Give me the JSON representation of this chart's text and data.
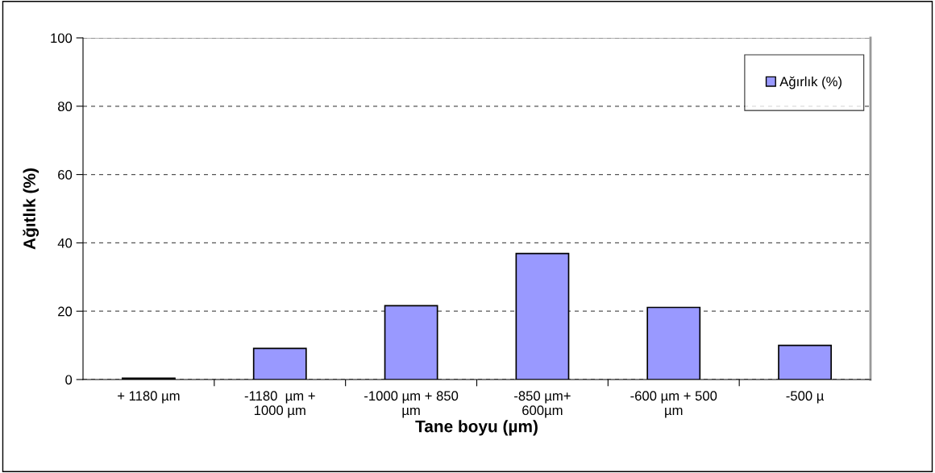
{
  "chart_data": {
    "type": "bar",
    "xlabel": "Tane boyu (µm)",
    "ylabel": "Ağıtlık (%)",
    "categories": [
      "+ 1180 µm",
      "-1180  µm +\n1000 µm",
      "-1000 µm + 850\nµm",
      "-850 µm+\n600µm",
      "-600 µm + 500\nµm",
      "-500 µ"
    ],
    "series": [
      {
        "name": "Ağırlık (%)",
        "color": "#9999ff",
        "values": [
          0.4,
          9.1,
          21.6,
          36.9,
          21.1,
          10.0
        ]
      }
    ],
    "ylim": [
      0,
      100
    ],
    "yticks": [
      0,
      20,
      40,
      60,
      80,
      100
    ],
    "grid": "y",
    "legend": "top right"
  }
}
